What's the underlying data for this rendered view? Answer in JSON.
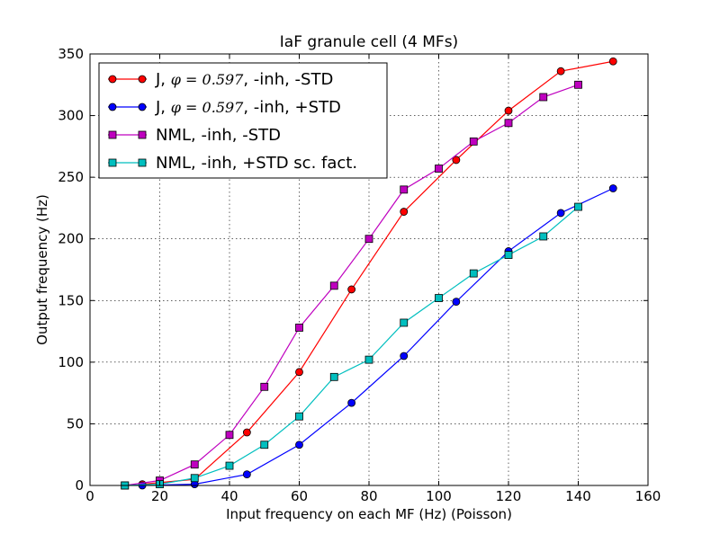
{
  "chart_data": {
    "type": "line",
    "title": "IaF granule cell (4 MFs)",
    "xlabel": "Input frequency on each MF (Hz) (Poisson)",
    "ylabel": "Output frequency (Hz)",
    "xlim": [
      0,
      160
    ],
    "ylim": [
      0,
      350
    ],
    "xticks": [
      0,
      20,
      40,
      60,
      80,
      100,
      120,
      140,
      160
    ],
    "yticks": [
      0,
      50,
      100,
      150,
      200,
      250,
      300,
      350
    ],
    "grid": true,
    "legend_position": "top-left",
    "series": [
      {
        "legend_prefix": "J, ",
        "legend_math": "φ = 0.597",
        "legend_suffix": ", -inh, -STD",
        "color": "#ff0000",
        "marker": "circle",
        "x": [
          15,
          30,
          45,
          60,
          75,
          90,
          105,
          120,
          135,
          150
        ],
        "y": [
          1,
          5,
          43,
          92,
          159,
          222,
          264,
          304,
          336,
          344
        ]
      },
      {
        "legend_prefix": "J, ",
        "legend_math": "φ = 0.597",
        "legend_suffix": ", -inh, +STD",
        "color": "#0000ff",
        "marker": "circle",
        "x": [
          15,
          30,
          45,
          60,
          75,
          90,
          105,
          120,
          135,
          150
        ],
        "y": [
          0,
          1,
          9,
          33,
          67,
          105,
          149,
          190,
          221,
          241
        ]
      },
      {
        "name": "NML, -inh, -STD",
        "color": "#bf00bf",
        "marker": "square",
        "x": [
          10,
          20,
          30,
          40,
          50,
          60,
          70,
          80,
          90,
          100,
          110,
          120,
          130,
          140
        ],
        "y": [
          0,
          4,
          17,
          41,
          80,
          128,
          162,
          200,
          240,
          257,
          279,
          294,
          315,
          325
        ]
      },
      {
        "name": "NML, -inh, +STD sc. fact.",
        "color": "#00bfbf",
        "marker": "square",
        "x": [
          10,
          20,
          30,
          40,
          50,
          60,
          70,
          80,
          90,
          100,
          110,
          120,
          130,
          140
        ],
        "y": [
          0,
          1,
          6,
          16,
          33,
          56,
          88,
          102,
          132,
          152,
          172,
          187,
          202,
          226
        ]
      }
    ]
  }
}
